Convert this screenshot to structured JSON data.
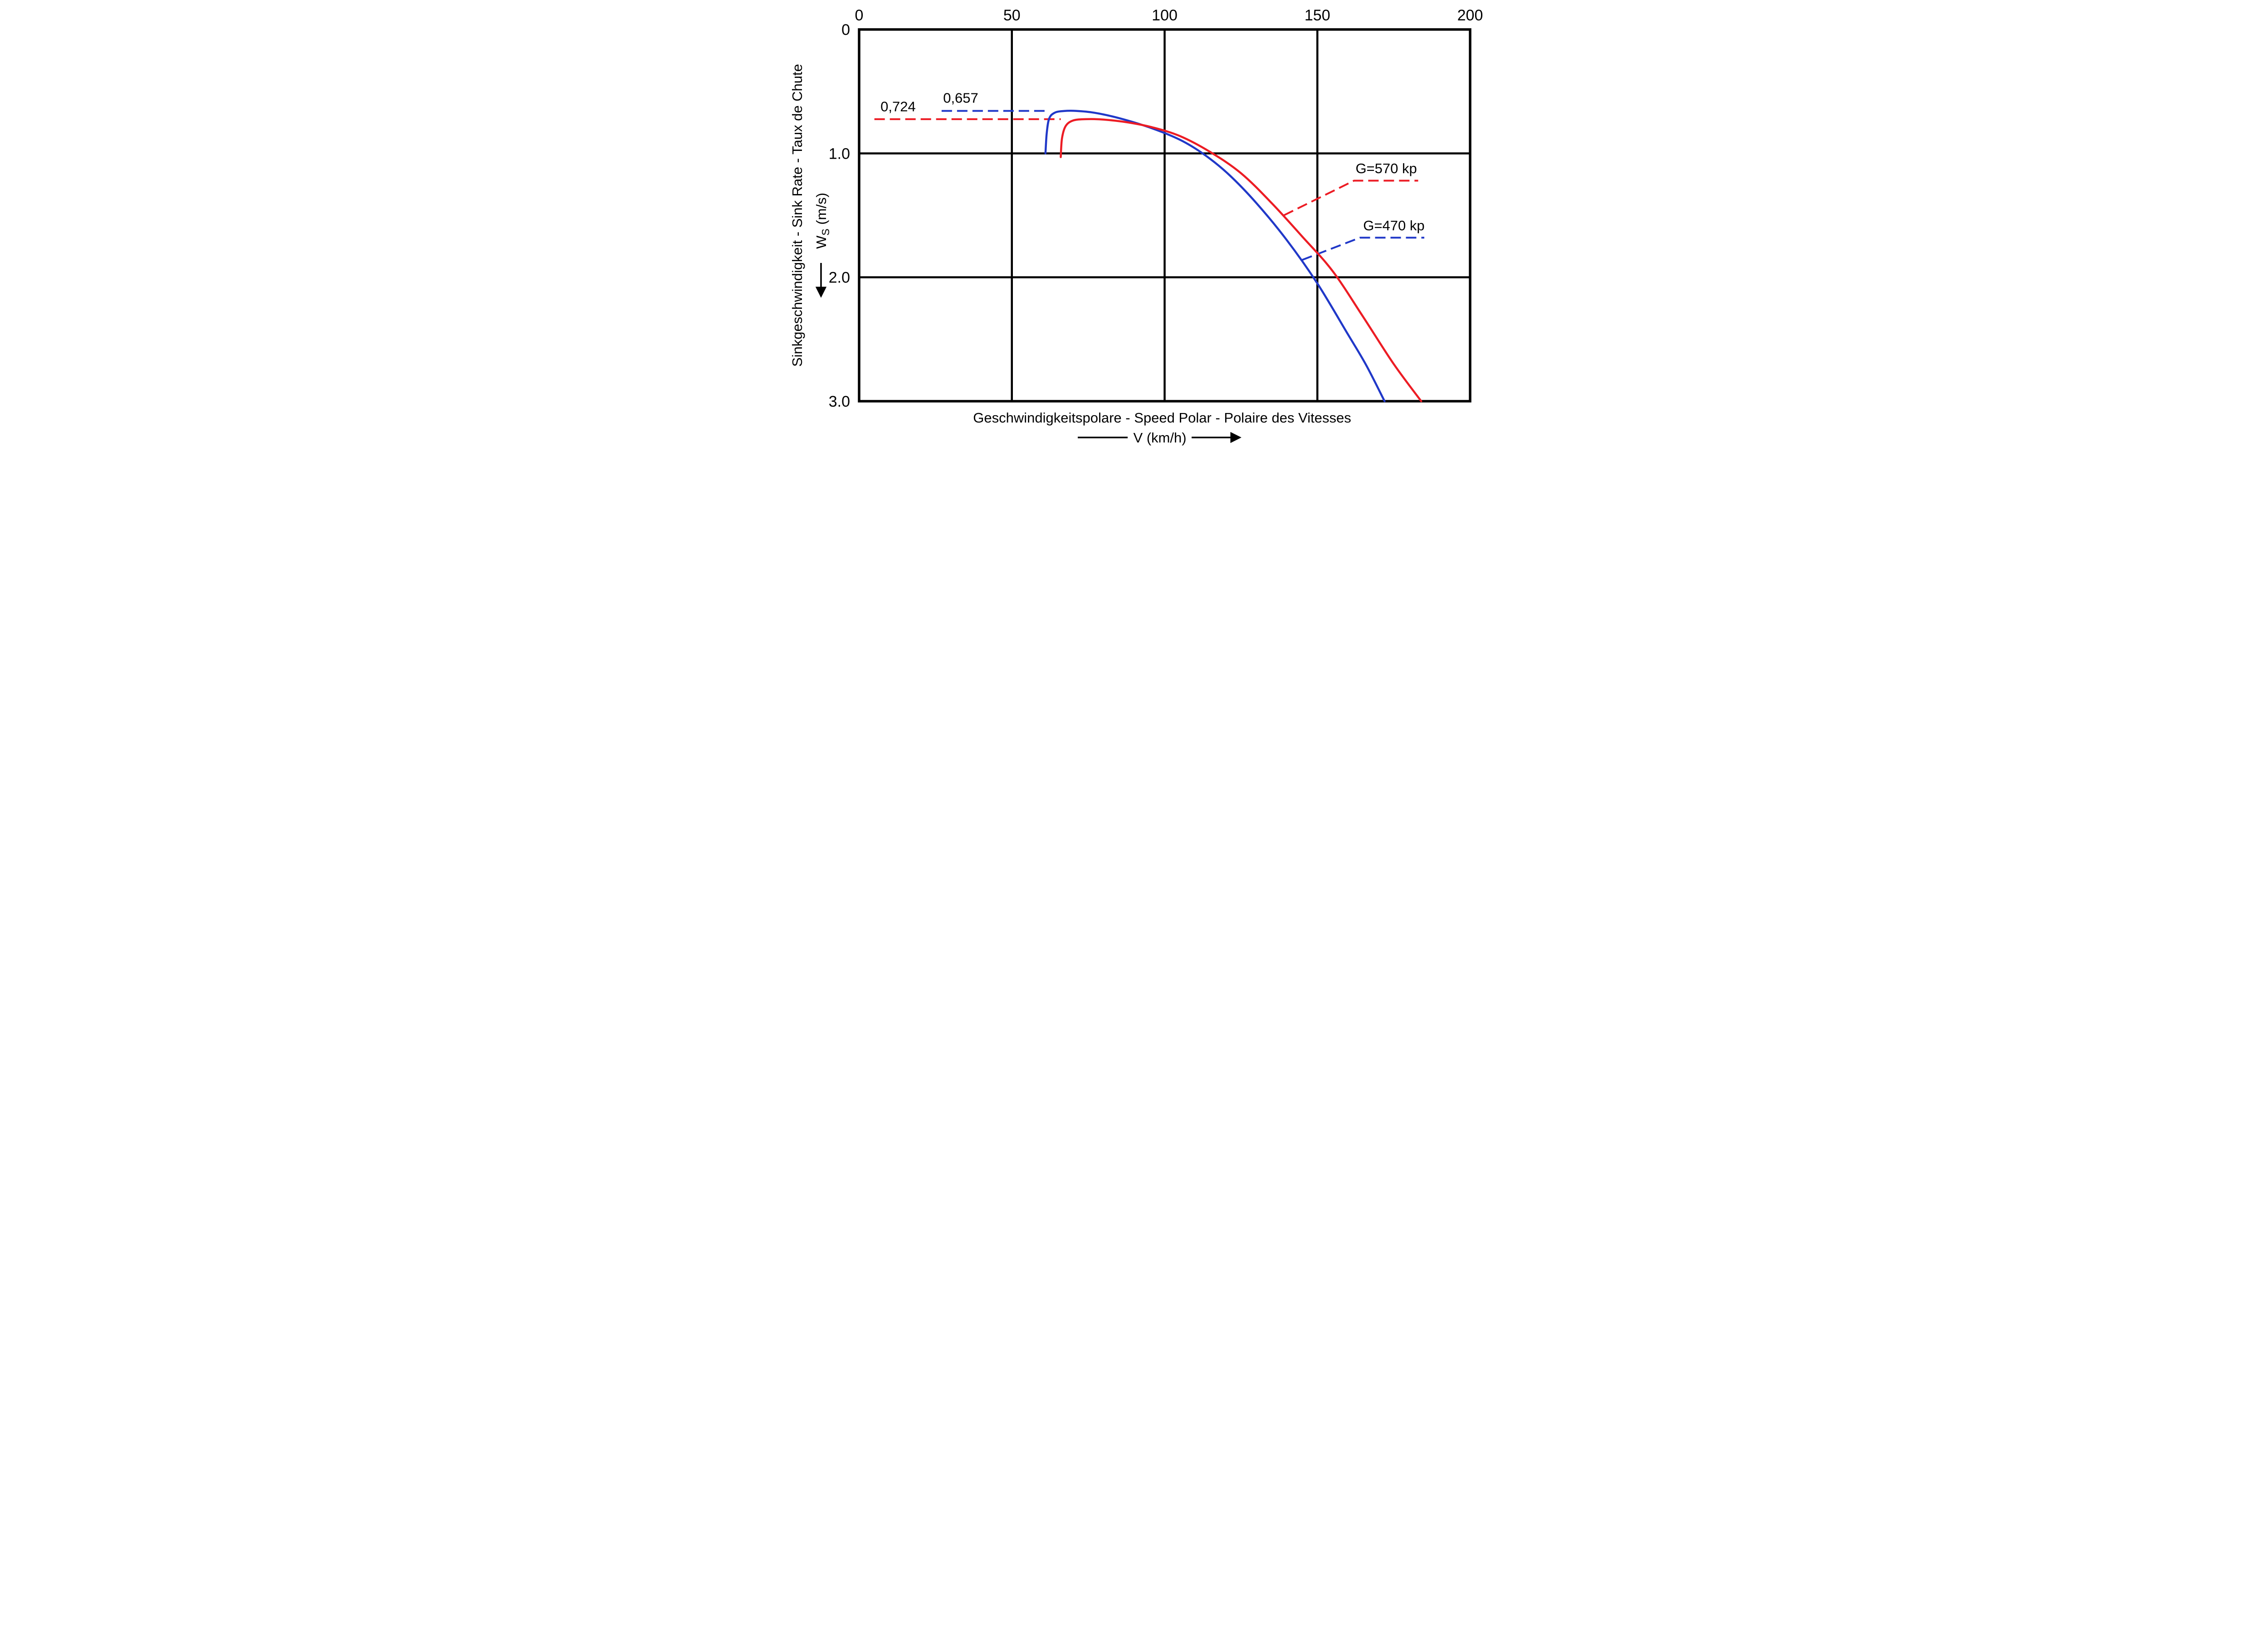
{
  "page": {
    "background": "#ffffff"
  },
  "colors": {
    "red": "#ec1c24",
    "blue": "#2038c8",
    "axis": "#000000"
  },
  "chart_data": {
    "type": "line",
    "title": "Geschwindigkeitspolare - Speed Polar - Polaire des Vitesses",
    "xlabel": "V (km/h)",
    "ylabel": "Sinkgeschwindigkeit - Sink Rate - Taux de Chute",
    "ws_label": {
      "main": "W",
      "sub": "S",
      "rest": " (m/s)"
    },
    "xlim": [
      0,
      200
    ],
    "ylim": [
      0,
      3.0
    ],
    "y_axis_points_downward": true,
    "grid": true,
    "x_ticks": [
      0,
      50,
      100,
      150,
      200
    ],
    "x_tick_labels": [
      "0",
      "50",
      "100",
      "150",
      "200"
    ],
    "y_ticks": [
      0,
      1.0,
      2.0,
      3.0
    ],
    "y_tick_labels": [
      "0",
      "1.0",
      "2.0",
      "3.0"
    ],
    "series": [
      {
        "name": "G=470 kp",
        "color": "#2038c8",
        "min_sink_ms": 0.657,
        "points": [
          [
            61,
            1.0
          ],
          [
            61.4,
            0.84
          ],
          [
            62.2,
            0.72
          ],
          [
            64,
            0.672
          ],
          [
            67,
            0.658
          ],
          [
            71,
            0.657
          ],
          [
            77,
            0.672
          ],
          [
            85,
            0.715
          ],
          [
            95,
            0.79
          ],
          [
            105,
            0.89
          ],
          [
            113,
            1.01
          ],
          [
            121,
            1.17
          ],
          [
            130,
            1.4
          ],
          [
            140,
            1.7
          ],
          [
            150,
            2.05
          ],
          [
            160,
            2.46
          ],
          [
            166,
            2.71
          ],
          [
            172,
            3.0
          ]
        ]
      },
      {
        "name": "G=570 kp",
        "color": "#ec1c24",
        "min_sink_ms": 0.724,
        "points": [
          [
            66,
            1.03
          ],
          [
            66.4,
            0.88
          ],
          [
            67.6,
            0.78
          ],
          [
            70,
            0.735
          ],
          [
            74,
            0.724
          ],
          [
            80,
            0.727
          ],
          [
            88,
            0.75
          ],
          [
            96,
            0.79
          ],
          [
            105,
            0.86
          ],
          [
            115,
            0.99
          ],
          [
            125,
            1.16
          ],
          [
            135,
            1.4
          ],
          [
            145,
            1.67
          ],
          [
            155,
            1.95
          ],
          [
            165,
            2.32
          ],
          [
            175,
            2.7
          ],
          [
            184,
            3.0
          ]
        ]
      }
    ],
    "min_sink_lines": [
      {
        "series": "G=570 kp",
        "label": "0,724",
        "color": "#ec1c24",
        "y": 0.724,
        "x_start": 5,
        "x_end": 66,
        "label_x": 7,
        "label_y": 0.66
      },
      {
        "series": "G=470 kp",
        "label": "0,657",
        "color": "#2038c8",
        "y": 0.657,
        "x_start": 27,
        "x_end": 62,
        "label_x": 27.5,
        "label_y": 0.59
      }
    ],
    "leader_labels": [
      {
        "label": "G=570 kp",
        "color": "#ec1c24",
        "points": [
          [
            139,
            1.5
          ],
          [
            162,
            1.22
          ],
          [
            183,
            1.22
          ]
        ],
        "label_x": 162.5,
        "label_y": 1.16
      },
      {
        "label": "G=470 kp",
        "color": "#2038c8",
        "points": [
          [
            145,
            1.86
          ],
          [
            164,
            1.68
          ],
          [
            185,
            1.68
          ]
        ],
        "label_x": 165,
        "label_y": 1.62
      }
    ]
  }
}
